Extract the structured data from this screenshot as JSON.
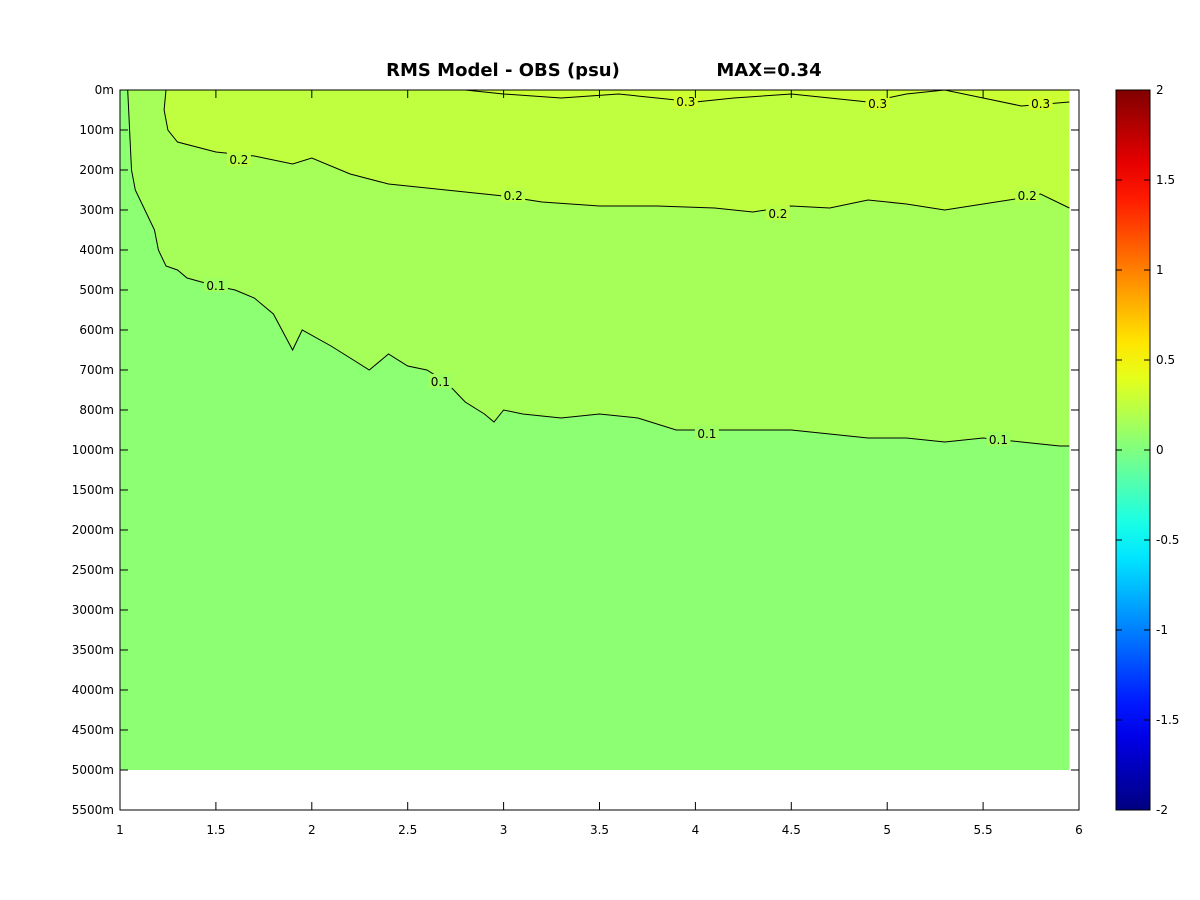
{
  "chart_data": {
    "type": "heatmap",
    "title": "RMS Model - OBS (psu)",
    "max_label": "MAX=0.34",
    "xlabel": "",
    "ylabel": "",
    "xlim": [
      1,
      6
    ],
    "x_ticks": [
      "1",
      "1.5",
      "2",
      "2.5",
      "3",
      "3.5",
      "4",
      "4.5",
      "5",
      "5.5",
      "6"
    ],
    "x_tick_values": [
      1,
      1.5,
      2,
      2.5,
      3,
      3.5,
      4,
      4.5,
      5,
      5.5,
      6
    ],
    "y_ticks": [
      "0m",
      "100m",
      "200m",
      "300m",
      "400m",
      "500m",
      "600m",
      "700m",
      "800m",
      "1000m",
      "1500m",
      "2000m",
      "2500m",
      "3000m",
      "3500m",
      "4000m",
      "4500m",
      "5000m",
      "5500m"
    ],
    "data_extent": {
      "x": [
        1,
        5.95
      ],
      "y_max_label": "5000m"
    },
    "colorbar": {
      "min": -2,
      "max": 2,
      "colormap": "jet",
      "tick_labels": [
        "2",
        "1.5",
        "1",
        "0.5",
        "0",
        "-0.5",
        "-1",
        "-1.5",
        "-2"
      ],
      "tick_values": [
        2,
        1.5,
        1,
        0.5,
        0,
        -0.5,
        -1,
        -1.5,
        -2
      ]
    },
    "contour_levels": [
      0.1,
      0.2,
      0.3
    ],
    "contours": [
      {
        "level": 0.1,
        "labels": [
          "0.1",
          "0.1",
          "0.1",
          "0.1"
        ],
        "points": [
          [
            1.04,
            0
          ],
          [
            1.06,
            2
          ],
          [
            1.08,
            2.5
          ],
          [
            1.13,
            3
          ],
          [
            1.18,
            3.5
          ],
          [
            1.2,
            4
          ],
          [
            1.24,
            4.4
          ],
          [
            1.3,
            4.5
          ],
          [
            1.35,
            4.7
          ],
          [
            1.5,
            4.9
          ],
          [
            1.6,
            5
          ],
          [
            1.7,
            5.2
          ],
          [
            1.8,
            5.6
          ],
          [
            1.9,
            6.5
          ],
          [
            1.95,
            6
          ],
          [
            2.1,
            6.4
          ],
          [
            2.2,
            6.7
          ],
          [
            2.3,
            7
          ],
          [
            2.4,
            6.6
          ],
          [
            2.5,
            6.9
          ],
          [
            2.6,
            7
          ],
          [
            2.7,
            7.3
          ],
          [
            2.8,
            7.8
          ],
          [
            2.9,
            8.1
          ],
          [
            2.95,
            8.3
          ],
          [
            3.0,
            8.0
          ],
          [
            3.1,
            8.1
          ],
          [
            3.3,
            8.2
          ],
          [
            3.5,
            8.1
          ],
          [
            3.7,
            8.2
          ],
          [
            3.9,
            8.5
          ],
          [
            4.1,
            8.5
          ],
          [
            4.3,
            8.5
          ],
          [
            4.5,
            8.5
          ],
          [
            4.7,
            8.6
          ],
          [
            4.9,
            8.7
          ],
          [
            5.1,
            8.7
          ],
          [
            5.3,
            8.8
          ],
          [
            5.5,
            8.7
          ],
          [
            5.7,
            8.8
          ],
          [
            5.9,
            8.9
          ],
          [
            5.95,
            8.9
          ]
        ],
        "label_at": [
          [
            1.5,
            4.9
          ],
          [
            2.67,
            7.3
          ],
          [
            4.06,
            8.6
          ],
          [
            5.58,
            8.75
          ]
        ]
      },
      {
        "level": 0.2,
        "labels": [
          "0.2",
          "0.2",
          "0.2",
          "0.2"
        ],
        "points": [
          [
            1.24,
            0
          ],
          [
            1.23,
            0.5
          ],
          [
            1.25,
            1.0
          ],
          [
            1.3,
            1.3
          ],
          [
            1.5,
            1.55
          ],
          [
            1.7,
            1.65
          ],
          [
            1.9,
            1.85
          ],
          [
            2.0,
            1.7
          ],
          [
            2.2,
            2.1
          ],
          [
            2.4,
            2.35
          ],
          [
            2.6,
            2.45
          ],
          [
            2.8,
            2.55
          ],
          [
            3.0,
            2.65
          ],
          [
            3.2,
            2.8
          ],
          [
            3.5,
            2.9
          ],
          [
            3.8,
            2.9
          ],
          [
            4.1,
            2.95
          ],
          [
            4.3,
            3.05
          ],
          [
            4.5,
            2.9
          ],
          [
            4.7,
            2.95
          ],
          [
            4.9,
            2.75
          ],
          [
            5.1,
            2.85
          ],
          [
            5.3,
            3.0
          ],
          [
            5.5,
            2.85
          ],
          [
            5.7,
            2.7
          ],
          [
            5.8,
            2.6
          ],
          [
            5.95,
            2.95
          ]
        ],
        "label_at": [
          [
            1.62,
            1.75
          ],
          [
            3.05,
            2.65
          ],
          [
            4.43,
            3.1
          ],
          [
            5.73,
            2.65
          ]
        ]
      },
      {
        "level": 0.3,
        "labels": [
          "0.3",
          "0.3",
          "0.3"
        ],
        "points": [
          [
            2.8,
            0
          ],
          [
            3.0,
            0.1
          ],
          [
            3.3,
            0.2
          ],
          [
            3.6,
            0.1
          ],
          [
            3.8,
            0.2
          ],
          [
            4.0,
            0.3
          ],
          [
            4.2,
            0.2
          ],
          [
            4.5,
            0.1
          ],
          [
            4.7,
            0.2
          ],
          [
            4.9,
            0.3
          ],
          [
            5.1,
            0.1
          ],
          [
            5.3,
            0
          ],
          [
            5.5,
            0.2
          ],
          [
            5.7,
            0.4
          ],
          [
            5.95,
            0.3
          ]
        ],
        "label_at": [
          [
            3.95,
            0.3
          ],
          [
            4.95,
            0.35
          ],
          [
            5.8,
            0.35
          ]
        ]
      }
    ]
  }
}
